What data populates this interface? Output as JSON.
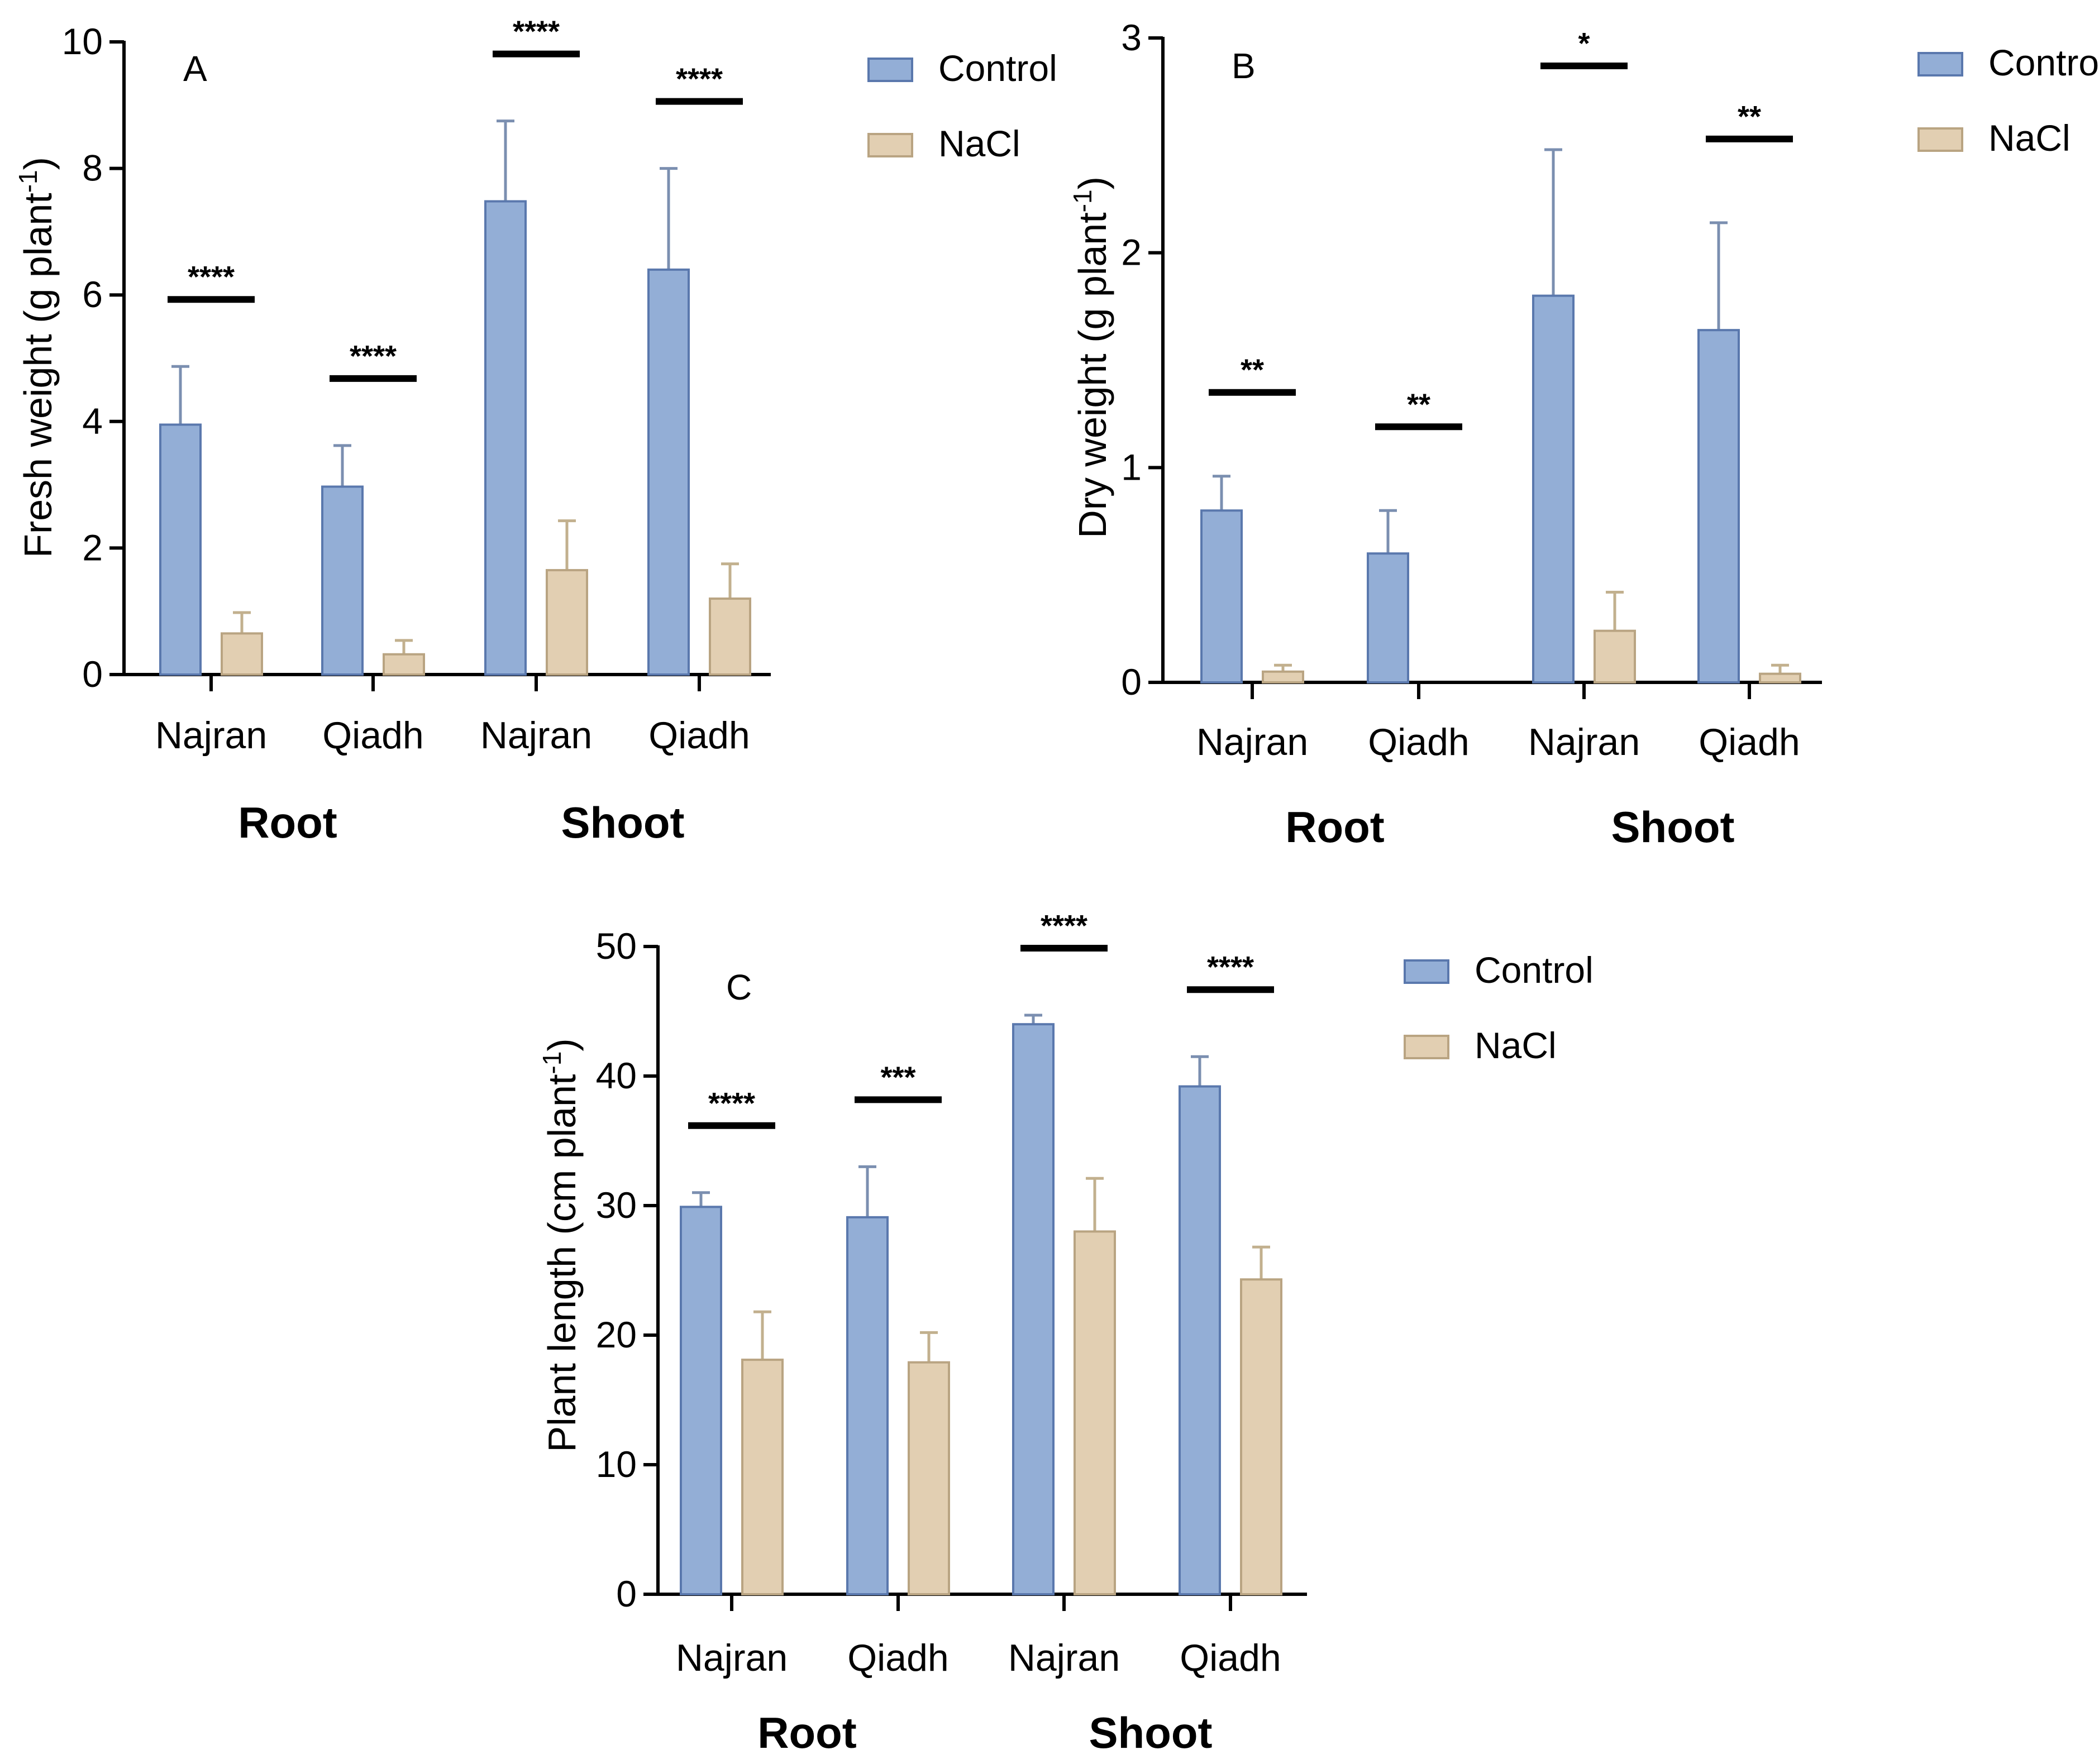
{
  "colors": {
    "control_fill": "#93aed6",
    "control_stroke": "#5a78ad",
    "nacl_fill": "#e2cfb2",
    "nacl_stroke": "#b9a482",
    "axis": "#000000",
    "errorbar_control": "#7b8fb0",
    "errorbar_nacl": "#c2b08e"
  },
  "chart_data": [
    {
      "panel": "A",
      "type": "bar",
      "ylabel": "Fresh weight (g plant",
      "ylabel_sup": "-1",
      "ylabel_end": ")",
      "ylim": [
        0,
        10
      ],
      "yticks": [
        "0",
        "2",
        "4",
        "6",
        "8",
        "10"
      ],
      "categories": [
        "Najran",
        "Qiadh",
        "Najran",
        "Qiadh"
      ],
      "groups": [
        {
          "label": "Root"
        },
        {
          "label": "Shoot"
        }
      ],
      "series": [
        {
          "name": "Control",
          "values": [
            3.95,
            2.97,
            7.48,
            6.4
          ],
          "errors": [
            0.92,
            0.65,
            1.27,
            1.6
          ]
        },
        {
          "name": "NaCl",
          "values": [
            0.65,
            0.32,
            1.65,
            1.2
          ],
          "errors": [
            0.33,
            0.22,
            0.78,
            0.55
          ]
        }
      ],
      "significance": [
        "****",
        "****",
        "****",
        "****"
      ],
      "legend": [
        "Control",
        "NaCl"
      ],
      "legend_position": "top-right"
    },
    {
      "panel": "B",
      "type": "bar",
      "ylabel": "Dry weight (g plant",
      "ylabel_sup": "-1",
      "ylabel_end": ")",
      "ylim": [
        0,
        3
      ],
      "yticks": [
        "0",
        "1",
        "2",
        "3"
      ],
      "categories": [
        "Najran",
        "Qiadh",
        "Najran",
        "Qiadh"
      ],
      "groups": [
        {
          "label": "Root"
        },
        {
          "label": "Shoot"
        }
      ],
      "series": [
        {
          "name": "Control",
          "values": [
            0.8,
            0.6,
            1.8,
            1.64
          ],
          "errors": [
            0.16,
            0.2,
            0.68,
            0.5
          ]
        },
        {
          "name": "NaCl",
          "values": [
            0.05,
            0.0,
            0.24,
            0.04
          ],
          "errors": [
            0.03,
            0.0,
            0.18,
            0.04
          ]
        }
      ],
      "significance": [
        "**",
        "**",
        "*",
        "**"
      ],
      "legend": [
        "Control",
        "NaCl"
      ],
      "legend_position": "top-right"
    },
    {
      "panel": "C",
      "type": "bar",
      "ylabel": "Plant length (cm plant",
      "ylabel_sup": "-1",
      "ylabel_end": ")",
      "ylim": [
        0,
        50
      ],
      "yticks": [
        "0",
        "10",
        "20",
        "30",
        "40",
        "50"
      ],
      "categories": [
        "Najran",
        "Qiadh",
        "Najran",
        "Qiadh"
      ],
      "groups": [
        {
          "label": "Root"
        },
        {
          "label": "Shoot"
        }
      ],
      "series": [
        {
          "name": "Control",
          "values": [
            29.9,
            29.1,
            44.0,
            39.2
          ],
          "errors": [
            1.1,
            3.9,
            0.7,
            2.3
          ]
        },
        {
          "name": "NaCl",
          "values": [
            18.1,
            17.9,
            28.0,
            24.3
          ],
          "errors": [
            3.7,
            2.3,
            4.1,
            2.5
          ]
        }
      ],
      "significance": [
        "****",
        "***",
        "****",
        "****"
      ],
      "legend": [
        "Control",
        "NaCl"
      ],
      "legend_position": "top-right"
    }
  ]
}
